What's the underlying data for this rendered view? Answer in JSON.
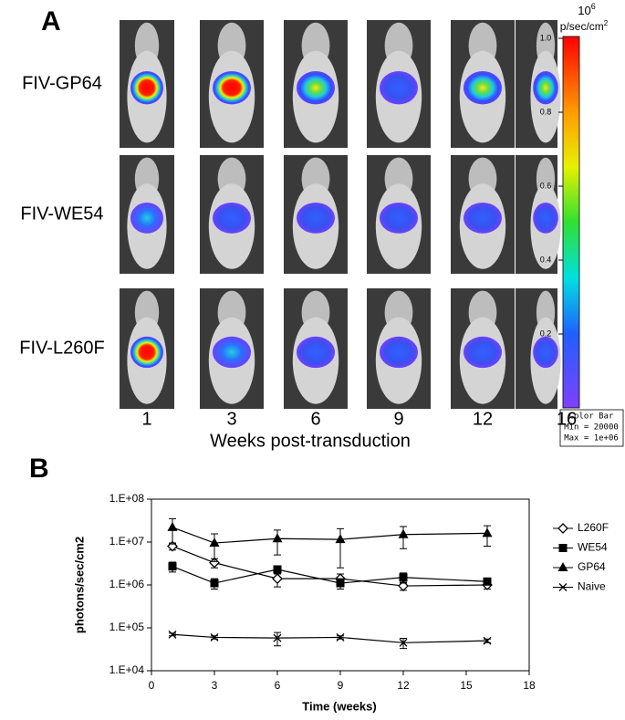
{
  "panel_a": {
    "label": "A",
    "rows": [
      "FIV-GP64",
      "FIV-WE54",
      "FIV-L260F"
    ],
    "weeks": [
      "1",
      "3",
      "6",
      "9",
      "12",
      "16"
    ],
    "xlabel": "Weeks post-transduction",
    "colorbar": {
      "unit_base": "10",
      "unit_exp": "6",
      "unit": "p/sec/cm",
      "unit_sup": "2",
      "lim": [
        0,
        1
      ],
      "ticks": [
        {
          "value": 1,
          "label": "1.0"
        },
        0.8,
        0.6,
        0.4,
        0.2
      ],
      "caption": [
        "Color Bar",
        "Min = 20000",
        "Max = 1e+06"
      ]
    }
  },
  "chart_data": {
    "type": "line",
    "label": "B",
    "xlabel": "Time (weeks)",
    "ylabel": "photons/sec/cm2",
    "x": [
      1,
      3,
      6,
      9,
      12,
      16
    ],
    "xlim": [
      0,
      18
    ],
    "xticks": [
      0,
      3,
      6,
      9,
      12,
      15,
      18
    ],
    "ylog": true,
    "ylim": [
      10000,
      100000000
    ],
    "yticks": [
      {
        "value": 10000,
        "label": "1.E+04"
      },
      {
        "value": 100000,
        "label": "1.E+05"
      },
      {
        "value": 1000000,
        "label": "1.E+06"
      },
      {
        "value": 10000000,
        "label": "1.E+07"
      },
      {
        "value": 100000000,
        "label": "1.E+08"
      }
    ],
    "grid": false,
    "legend": "right",
    "series": [
      {
        "name": "L260F",
        "color": "#000000",
        "marker": "diamond-open",
        "values": [
          8000000,
          3300000,
          1400000,
          1400000,
          950000,
          1000000
        ],
        "errors": [
          1500000,
          800000,
          500000,
          400000,
          200000,
          200000
        ]
      },
      {
        "name": "WE54",
        "color": "#000000",
        "marker": "square",
        "values": [
          2700000,
          1100000,
          2300000,
          1100000,
          1500000,
          1200000
        ],
        "errors": [
          700000,
          300000,
          500000,
          300000,
          400000,
          200000
        ]
      },
      {
        "name": "GP64",
        "color": "#000000",
        "marker": "triangle",
        "values": [
          22000000,
          9500000,
          12000000,
          11500000,
          15000000,
          16000000
        ],
        "errors": [
          13000000,
          6000000,
          7000000,
          9000000,
          8000000,
          8000000
        ]
      },
      {
        "name": "Naive",
        "color": "#000000",
        "marker": "x",
        "values": [
          70000,
          60000,
          58000,
          60000,
          45000,
          50000
        ],
        "errors": [
          5000,
          5000,
          20000,
          5000,
          12000,
          5000
        ]
      }
    ]
  }
}
